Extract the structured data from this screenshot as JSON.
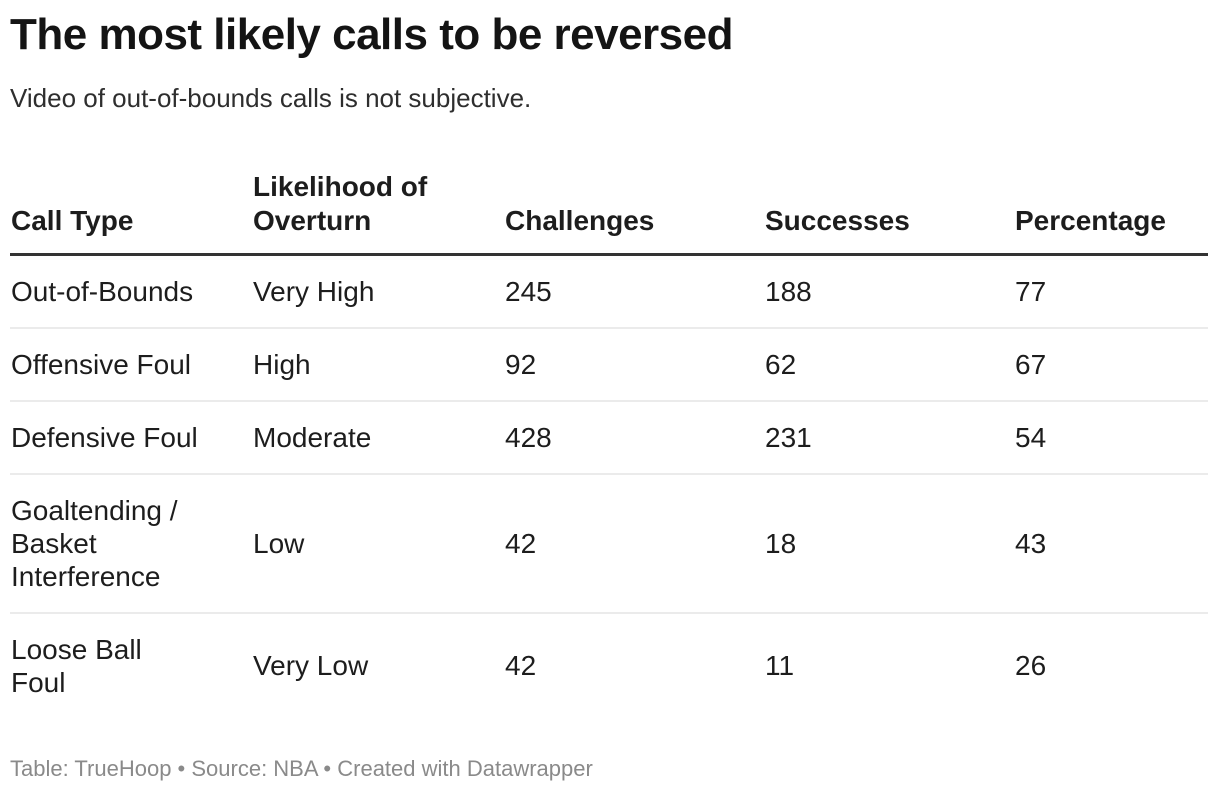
{
  "title": "The most likely calls to be reversed",
  "subtitle": "Video of out-of-bounds calls is not subjective.",
  "chart_data": {
    "type": "table",
    "title": "The most likely calls to be reversed",
    "subtitle": "Video of out-of-bounds calls is not subjective.",
    "columns": [
      "Call Type",
      "Likelihood of Overturn",
      "Challenges",
      "Successes",
      "Percentage"
    ],
    "rows": [
      [
        "Out-of-Bounds",
        "Very High",
        "245",
        "188",
        "77"
      ],
      [
        "Offensive Foul",
        "High",
        "92",
        "62",
        "67"
      ],
      [
        "Defensive Foul",
        "Moderate",
        "428",
        "231",
        "54"
      ],
      [
        "Goaltending / Basket Interference",
        "Low",
        "42",
        "18",
        "43"
      ],
      [
        "Loose Ball Foul",
        "Very Low",
        "42",
        "11",
        "26"
      ]
    ]
  },
  "footer": "Table: TrueHoop • Source: NBA • Created with Datawrapper",
  "colors": {
    "title_text": "#141414",
    "body_text": "#1d1d1d",
    "header_rule": "#333333",
    "row_divider": "#ebebeb",
    "footer_text": "#8a8a8a",
    "background": "#ffffff"
  }
}
